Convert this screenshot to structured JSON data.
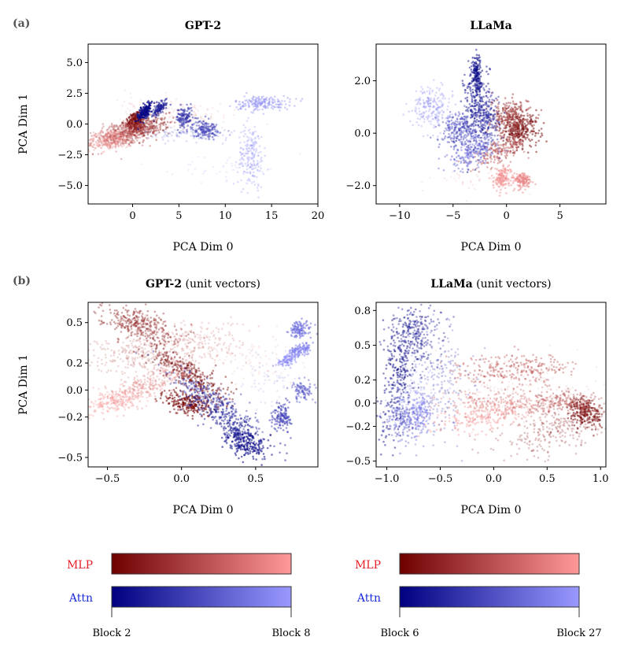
{
  "panel_labels": {
    "a": "(a)",
    "b": "(b)"
  },
  "colors": {
    "mlp_dark": "#6e0000",
    "mlp_light": "#ff9999",
    "attn_dark": "#000080",
    "attn_light": "#9999ff",
    "mlp_text": "#e8202a",
    "attn_text": "#1a2bd6"
  },
  "chart_data": [
    {
      "id": "gpt2",
      "type": "scatter",
      "title": "GPT-2",
      "title_suffix": "",
      "xlabel": "PCA Dim 0",
      "ylabel": "PCA Dim 1",
      "xlim": [
        -4.8,
        20
      ],
      "ylim": [
        -6.5,
        6.5
      ],
      "xticks": [
        0,
        5,
        10,
        15,
        20
      ],
      "xtick_labels": [
        "0",
        "5",
        "10",
        "15",
        "20"
      ],
      "yticks": [
        -5,
        -2.5,
        0,
        2.5,
        5
      ],
      "ytick_labels": [
        "−5.0",
        "−2.5",
        "0.0",
        "2.5",
        "5.0"
      ],
      "clusters": [
        {
          "series": "MLP",
          "t": 0.05,
          "x": 0.3,
          "y": 0.2,
          "sx": 0.5,
          "sy": 0.4,
          "rot": 30,
          "n": 220,
          "a": 0.55
        },
        {
          "series": "MLP",
          "t": 0.25,
          "x": 0.8,
          "y": -0.4,
          "sx": 1.6,
          "sy": 0.4,
          "rot": 12,
          "n": 320,
          "a": 0.4
        },
        {
          "series": "MLP",
          "t": 0.55,
          "x": -1.0,
          "y": -0.8,
          "sx": 1.8,
          "sy": 0.5,
          "rot": 15,
          "n": 320,
          "a": 0.35
        },
        {
          "series": "MLP",
          "t": 0.85,
          "x": -2.5,
          "y": -1.3,
          "sx": 1.3,
          "sy": 0.4,
          "rot": 10,
          "n": 260,
          "a": 0.3
        },
        {
          "series": "MLP",
          "t": 0.7,
          "x": 5.0,
          "y": 1.0,
          "sx": 3.0,
          "sy": 0.6,
          "rot": -10,
          "n": 140,
          "a": 0.12
        },
        {
          "series": "Attn",
          "t": 0.05,
          "x": 1.3,
          "y": 1.0,
          "sx": 0.6,
          "sy": 0.18,
          "rot": 55,
          "n": 160,
          "a": 0.7
        },
        {
          "series": "Attn",
          "t": 0.2,
          "x": 2.9,
          "y": 1.3,
          "sx": 0.5,
          "sy": 0.18,
          "rot": 50,
          "n": 110,
          "a": 0.55
        },
        {
          "series": "Attn",
          "t": 0.35,
          "x": 5.6,
          "y": 0.5,
          "sx": 0.45,
          "sy": 0.45,
          "rot": 0,
          "n": 130,
          "a": 0.5
        },
        {
          "series": "Attn",
          "t": 0.45,
          "x": 7.8,
          "y": -0.4,
          "sx": 0.65,
          "sy": 0.35,
          "rot": 0,
          "n": 140,
          "a": 0.5
        },
        {
          "series": "Attn",
          "t": 0.6,
          "x": 6.5,
          "y": -0.8,
          "sx": 2.5,
          "sy": 0.3,
          "rot": 0,
          "n": 120,
          "a": 0.2
        },
        {
          "series": "Attn",
          "t": 0.9,
          "x": 14.0,
          "y": 1.7,
          "sx": 1.5,
          "sy": 0.3,
          "rot": 0,
          "n": 180,
          "a": 0.4
        },
        {
          "series": "Attn",
          "t": 0.95,
          "x": 12.8,
          "y": -2.6,
          "sx": 0.7,
          "sy": 1.3,
          "rot": 0,
          "n": 200,
          "a": 0.3
        },
        {
          "series": "Attn",
          "t": 0.95,
          "x": 9.0,
          "y": -3.5,
          "sx": 2.5,
          "sy": 0.5,
          "rot": 0,
          "n": 40,
          "a": 0.15
        }
      ]
    },
    {
      "id": "llama",
      "type": "scatter",
      "title": "LLaMa",
      "title_suffix": "",
      "xlabel": "PCA Dim 0",
      "ylabel": "",
      "xlim": [
        -12.2,
        9.3
      ],
      "ylim": [
        -2.7,
        3.4
      ],
      "xticks": [
        -10,
        -5,
        0,
        5
      ],
      "xtick_labels": [
        "−10",
        "−5",
        "0",
        "5"
      ],
      "yticks": [
        -2,
        0,
        2
      ],
      "ytick_labels": [
        "−2.0",
        "0.0",
        "2.0"
      ],
      "clusters": [
        {
          "series": "MLP",
          "t": 0.05,
          "x": 1.2,
          "y": 0.1,
          "sx": 0.9,
          "sy": 0.35,
          "rot": -25,
          "n": 260,
          "a": 0.5
        },
        {
          "series": "MLP",
          "t": 0.3,
          "x": 0.3,
          "y": 0.6,
          "sx": 1.0,
          "sy": 0.35,
          "rot": -40,
          "n": 260,
          "a": 0.45
        },
        {
          "series": "MLP",
          "t": 0.5,
          "x": -0.6,
          "y": -0.7,
          "sx": 1.3,
          "sy": 0.2,
          "rot": 25,
          "n": 200,
          "a": 0.4
        },
        {
          "series": "MLP",
          "t": 0.85,
          "x": 1.5,
          "y": -1.8,
          "sx": 0.4,
          "sy": 0.15,
          "rot": 70,
          "n": 140,
          "a": 0.45
        },
        {
          "series": "MLP",
          "t": 0.9,
          "x": -0.4,
          "y": -1.7,
          "sx": 0.5,
          "sy": 0.15,
          "rot": 70,
          "n": 140,
          "a": 0.45
        },
        {
          "series": "MLP",
          "t": 0.7,
          "x": -3.0,
          "y": -1.8,
          "sx": 2.0,
          "sy": 0.25,
          "rot": 0,
          "n": 40,
          "a": 0.12
        },
        {
          "series": "Attn",
          "t": 0.05,
          "x": -2.8,
          "y": 2.3,
          "sx": 0.2,
          "sy": 0.35,
          "rot": 0,
          "n": 120,
          "a": 0.55
        },
        {
          "series": "Attn",
          "t": 0.15,
          "x": -2.8,
          "y": 1.0,
          "sx": 0.6,
          "sy": 0.9,
          "rot": 0,
          "n": 260,
          "a": 0.5
        },
        {
          "series": "Attn",
          "t": 0.3,
          "x": -1.8,
          "y": 0.5,
          "sx": 0.55,
          "sy": 0.5,
          "rot": 0,
          "n": 180,
          "a": 0.45
        },
        {
          "series": "Attn",
          "t": 0.5,
          "x": -4.5,
          "y": 0.1,
          "sx": 0.8,
          "sy": 0.35,
          "rot": -25,
          "n": 220,
          "a": 0.45
        },
        {
          "series": "Attn",
          "t": 0.7,
          "x": -3.2,
          "y": -0.7,
          "sx": 1.2,
          "sy": 0.25,
          "rot": 30,
          "n": 200,
          "a": 0.45
        },
        {
          "series": "Attn",
          "t": 0.9,
          "x": -7.0,
          "y": 1.0,
          "sx": 0.9,
          "sy": 0.4,
          "rot": 0,
          "n": 220,
          "a": 0.3
        }
      ]
    },
    {
      "id": "gpt2_unit",
      "type": "scatter",
      "title": "GPT-2",
      "title_suffix": " (unit vectors)",
      "xlabel": "PCA Dim 0",
      "ylabel": "PCA Dim 1",
      "xlim": [
        -0.63,
        0.92
      ],
      "ylim": [
        -0.57,
        0.65
      ],
      "xticks": [
        -0.5,
        0,
        0.5
      ],
      "xtick_labels": [
        "−0.5",
        "0.0",
        "0.5"
      ],
      "yticks": [
        -0.5,
        -0.2,
        0,
        0.2,
        0.5
      ],
      "ytick_labels": [
        "−0.5",
        "−0.2",
        "0.0",
        "0.2",
        "0.5"
      ],
      "clusters": [
        {
          "series": "MLP",
          "t": 0.05,
          "x": 0.05,
          "y": 0.12,
          "sx": 0.16,
          "sy": 0.05,
          "rot": -35,
          "n": 320,
          "a": 0.45
        },
        {
          "series": "MLP",
          "t": 0.1,
          "x": 0.05,
          "y": -0.1,
          "sx": 0.08,
          "sy": 0.045,
          "rot": -10,
          "n": 240,
          "a": 0.55
        },
        {
          "series": "MLP",
          "t": 0.25,
          "x": -0.3,
          "y": 0.5,
          "sx": 0.13,
          "sy": 0.05,
          "rot": -15,
          "n": 300,
          "a": 0.4
        },
        {
          "series": "MLP",
          "t": 0.45,
          "x": -0.3,
          "y": 0.25,
          "sx": 0.2,
          "sy": 0.08,
          "rot": 0,
          "n": 240,
          "a": 0.2
        },
        {
          "series": "MLP",
          "t": 0.6,
          "x": 0.05,
          "y": 0.35,
          "sx": 0.2,
          "sy": 0.08,
          "rot": 0,
          "n": 240,
          "a": 0.2
        },
        {
          "series": "MLP",
          "t": 0.75,
          "x": -0.2,
          "y": 0.05,
          "sx": 0.18,
          "sy": 0.05,
          "rot": 25,
          "n": 280,
          "a": 0.3
        },
        {
          "series": "MLP",
          "t": 0.95,
          "x": -0.45,
          "y": -0.08,
          "sx": 0.1,
          "sy": 0.04,
          "rot": 15,
          "n": 200,
          "a": 0.3
        },
        {
          "series": "MLP",
          "t": 0.7,
          "x": 0.4,
          "y": 0.25,
          "sx": 0.2,
          "sy": 0.08,
          "rot": 0,
          "n": 100,
          "a": 0.12
        },
        {
          "series": "Attn",
          "t": 0.05,
          "x": 0.43,
          "y": -0.4,
          "sx": 0.08,
          "sy": 0.05,
          "rot": -25,
          "n": 220,
          "a": 0.55
        },
        {
          "series": "Attn",
          "t": 0.15,
          "x": 0.3,
          "y": -0.22,
          "sx": 0.15,
          "sy": 0.05,
          "rot": -35,
          "n": 240,
          "a": 0.45
        },
        {
          "series": "Attn",
          "t": 0.3,
          "x": 0.2,
          "y": -0.05,
          "sx": 0.18,
          "sy": 0.04,
          "rot": -30,
          "n": 200,
          "a": 0.4
        },
        {
          "series": "Attn",
          "t": 0.45,
          "x": 0.68,
          "y": -0.2,
          "sx": 0.03,
          "sy": 0.05,
          "rot": 0,
          "n": 130,
          "a": 0.55
        },
        {
          "series": "Attn",
          "t": 0.6,
          "x": 0.82,
          "y": 0.0,
          "sx": 0.04,
          "sy": 0.04,
          "rot": 0,
          "n": 100,
          "a": 0.45
        },
        {
          "series": "Attn",
          "t": 0.75,
          "x": 0.8,
          "y": 0.45,
          "sx": 0.04,
          "sy": 0.03,
          "rot": 20,
          "n": 120,
          "a": 0.55
        },
        {
          "series": "Attn",
          "t": 0.85,
          "x": 0.8,
          "y": 0.3,
          "sx": 0.04,
          "sy": 0.02,
          "rot": 20,
          "n": 110,
          "a": 0.55
        },
        {
          "series": "Attn",
          "t": 0.95,
          "x": 0.72,
          "y": 0.22,
          "sx": 0.04,
          "sy": 0.02,
          "rot": 20,
          "n": 100,
          "a": 0.5
        },
        {
          "series": "Attn",
          "t": 0.7,
          "x": 0.6,
          "y": 0.1,
          "sx": 0.1,
          "sy": 0.1,
          "rot": 0,
          "n": 60,
          "a": 0.15
        }
      ]
    },
    {
      "id": "llama_unit",
      "type": "scatter",
      "title": "LLaMa",
      "title_suffix": " (unit vectors)",
      "xlabel": "PCA Dim 0",
      "ylabel": "",
      "xlim": [
        -1.1,
        1.05
      ],
      "ylim": [
        -0.55,
        0.87
      ],
      "xticks": [
        -1,
        -0.5,
        0,
        0.5,
        1
      ],
      "xtick_labels": [
        "−1.0",
        "−0.5",
        "0.0",
        "0.5",
        "1.0"
      ],
      "yticks": [
        -0.5,
        -0.2,
        0,
        0.2,
        0.5,
        0.8
      ],
      "ytick_labels": [
        "−0.5",
        "−0.2",
        "0.0",
        "0.2",
        "0.5",
        "0.8"
      ],
      "clusters": [
        {
          "series": "MLP",
          "t": 0.05,
          "x": 0.85,
          "y": -0.08,
          "sx": 0.08,
          "sy": 0.06,
          "rot": -40,
          "n": 200,
          "a": 0.5
        },
        {
          "series": "MLP",
          "t": 0.2,
          "x": 0.6,
          "y": -0.22,
          "sx": 0.3,
          "sy": 0.1,
          "rot": 15,
          "n": 300,
          "a": 0.25
        },
        {
          "series": "MLP",
          "t": 0.4,
          "x": 0.7,
          "y": 0.0,
          "sx": 0.2,
          "sy": 0.05,
          "rot": 0,
          "n": 200,
          "a": 0.35
        },
        {
          "series": "MLP",
          "t": 0.55,
          "x": 0.2,
          "y": 0.3,
          "sx": 0.28,
          "sy": 0.06,
          "rot": 0,
          "n": 260,
          "a": 0.4
        },
        {
          "series": "MLP",
          "t": 0.7,
          "x": 0.1,
          "y": 0.0,
          "sx": 0.3,
          "sy": 0.06,
          "rot": 0,
          "n": 240,
          "a": 0.35
        },
        {
          "series": "MLP",
          "t": 0.9,
          "x": -0.1,
          "y": -0.12,
          "sx": 0.25,
          "sy": 0.05,
          "rot": 10,
          "n": 220,
          "a": 0.35
        },
        {
          "series": "MLP",
          "t": 0.6,
          "x": 0.3,
          "y": 0.1,
          "sx": 0.35,
          "sy": 0.15,
          "rot": 0,
          "n": 140,
          "a": 0.1
        },
        {
          "series": "Attn",
          "t": 0.05,
          "x": -0.88,
          "y": 0.25,
          "sx": 0.08,
          "sy": 0.3,
          "rot": -10,
          "n": 300,
          "a": 0.45
        },
        {
          "series": "Attn",
          "t": 0.2,
          "x": -0.72,
          "y": 0.6,
          "sx": 0.12,
          "sy": 0.12,
          "rot": -45,
          "n": 220,
          "a": 0.4
        },
        {
          "series": "Attn",
          "t": 0.4,
          "x": -0.5,
          "y": 0.2,
          "sx": 0.15,
          "sy": 0.25,
          "rot": 0,
          "n": 220,
          "a": 0.25
        },
        {
          "series": "Attn",
          "t": 0.6,
          "x": -0.85,
          "y": -0.15,
          "sx": 0.08,
          "sy": 0.1,
          "rot": 0,
          "n": 160,
          "a": 0.4
        },
        {
          "series": "Attn",
          "t": 0.8,
          "x": -0.68,
          "y": -0.1,
          "sx": 0.05,
          "sy": 0.08,
          "rot": 0,
          "n": 120,
          "a": 0.45
        },
        {
          "series": "Attn",
          "t": 0.95,
          "x": -0.75,
          "y": 0.05,
          "sx": 0.12,
          "sy": 0.12,
          "rot": 0,
          "n": 120,
          "a": 0.3
        }
      ]
    }
  ],
  "colorbars": [
    {
      "id": "gpt2",
      "mlp_label": "MLP",
      "attn_label": "Attn",
      "start_label": "Block 2",
      "end_label": "Block 8"
    },
    {
      "id": "llama",
      "mlp_label": "MLP",
      "attn_label": "Attn",
      "start_label": "Block 6",
      "end_label": "Block 27"
    }
  ]
}
